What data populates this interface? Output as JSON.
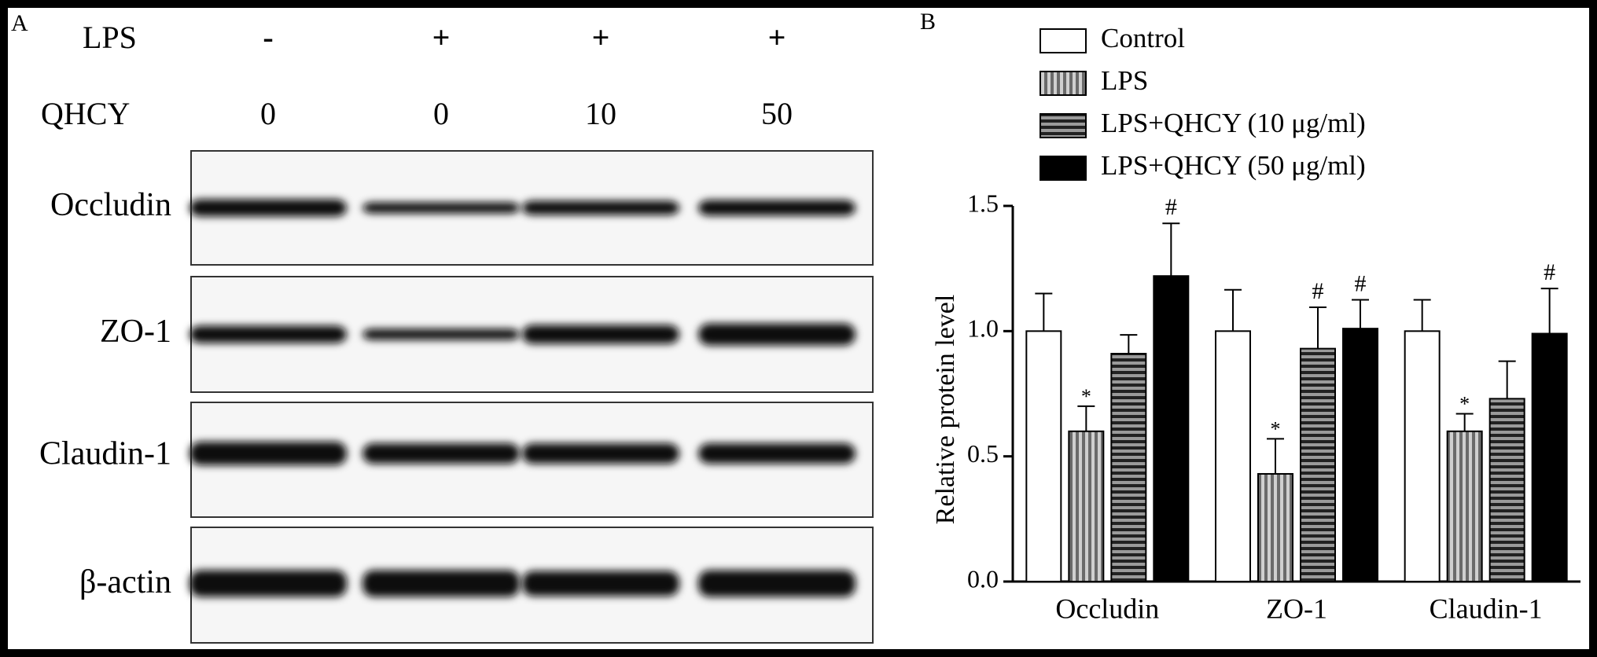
{
  "panel_a": {
    "panel_label": "A",
    "rows": [
      {
        "label": "LPS",
        "lanes": [
          "-",
          "+",
          "+",
          "+"
        ]
      },
      {
        "label": "QHCY",
        "lanes": [
          "0",
          "0",
          "10",
          "50"
        ]
      }
    ],
    "proteins": [
      "Occludin",
      "ZO-1",
      "Claudin-1",
      "β-actin"
    ]
  },
  "chart_data": {
    "type": "bar",
    "panel_label": "B",
    "y_label": "Relative protein level",
    "categories": [
      "Occludin",
      "ZO-1",
      "Claudin-1"
    ],
    "series": [
      {
        "name": "Control",
        "color": "#ffffff",
        "pattern": "solid",
        "values": [
          1.0,
          1.0,
          1.0
        ],
        "errors": [
          0.15,
          0.165,
          0.125
        ],
        "markers": [
          null,
          null,
          null
        ]
      },
      {
        "name": "LPS",
        "color": "#9a9a9a",
        "pattern": "vertical-stripes",
        "values": [
          0.6,
          0.43,
          0.6
        ],
        "errors": [
          0.1,
          0.14,
          0.07
        ],
        "markers": [
          "*",
          "*",
          "*"
        ]
      },
      {
        "name": "LPS+QHCY (10 μg/ml)",
        "color": "#555555",
        "pattern": "horizontal-stripes",
        "values": [
          0.91,
          0.93,
          0.73
        ],
        "errors": [
          0.075,
          0.165,
          0.15
        ],
        "markers": [
          null,
          "#",
          null
        ]
      },
      {
        "name": "LPS+QHCY (50 μg/ml)",
        "color": "#000000",
        "pattern": "solid",
        "values": [
          1.22,
          1.01,
          0.99
        ],
        "errors": [
          0.21,
          0.115,
          0.18
        ],
        "markers": [
          "#",
          "#",
          "#"
        ]
      }
    ],
    "ylim": [
      0,
      1.5
    ],
    "yticks": [
      {
        "value": 0,
        "label": "0.0"
      },
      0.5,
      {
        "value": 1,
        "label": "1.0"
      },
      1.5
    ],
    "legend": "top"
  }
}
